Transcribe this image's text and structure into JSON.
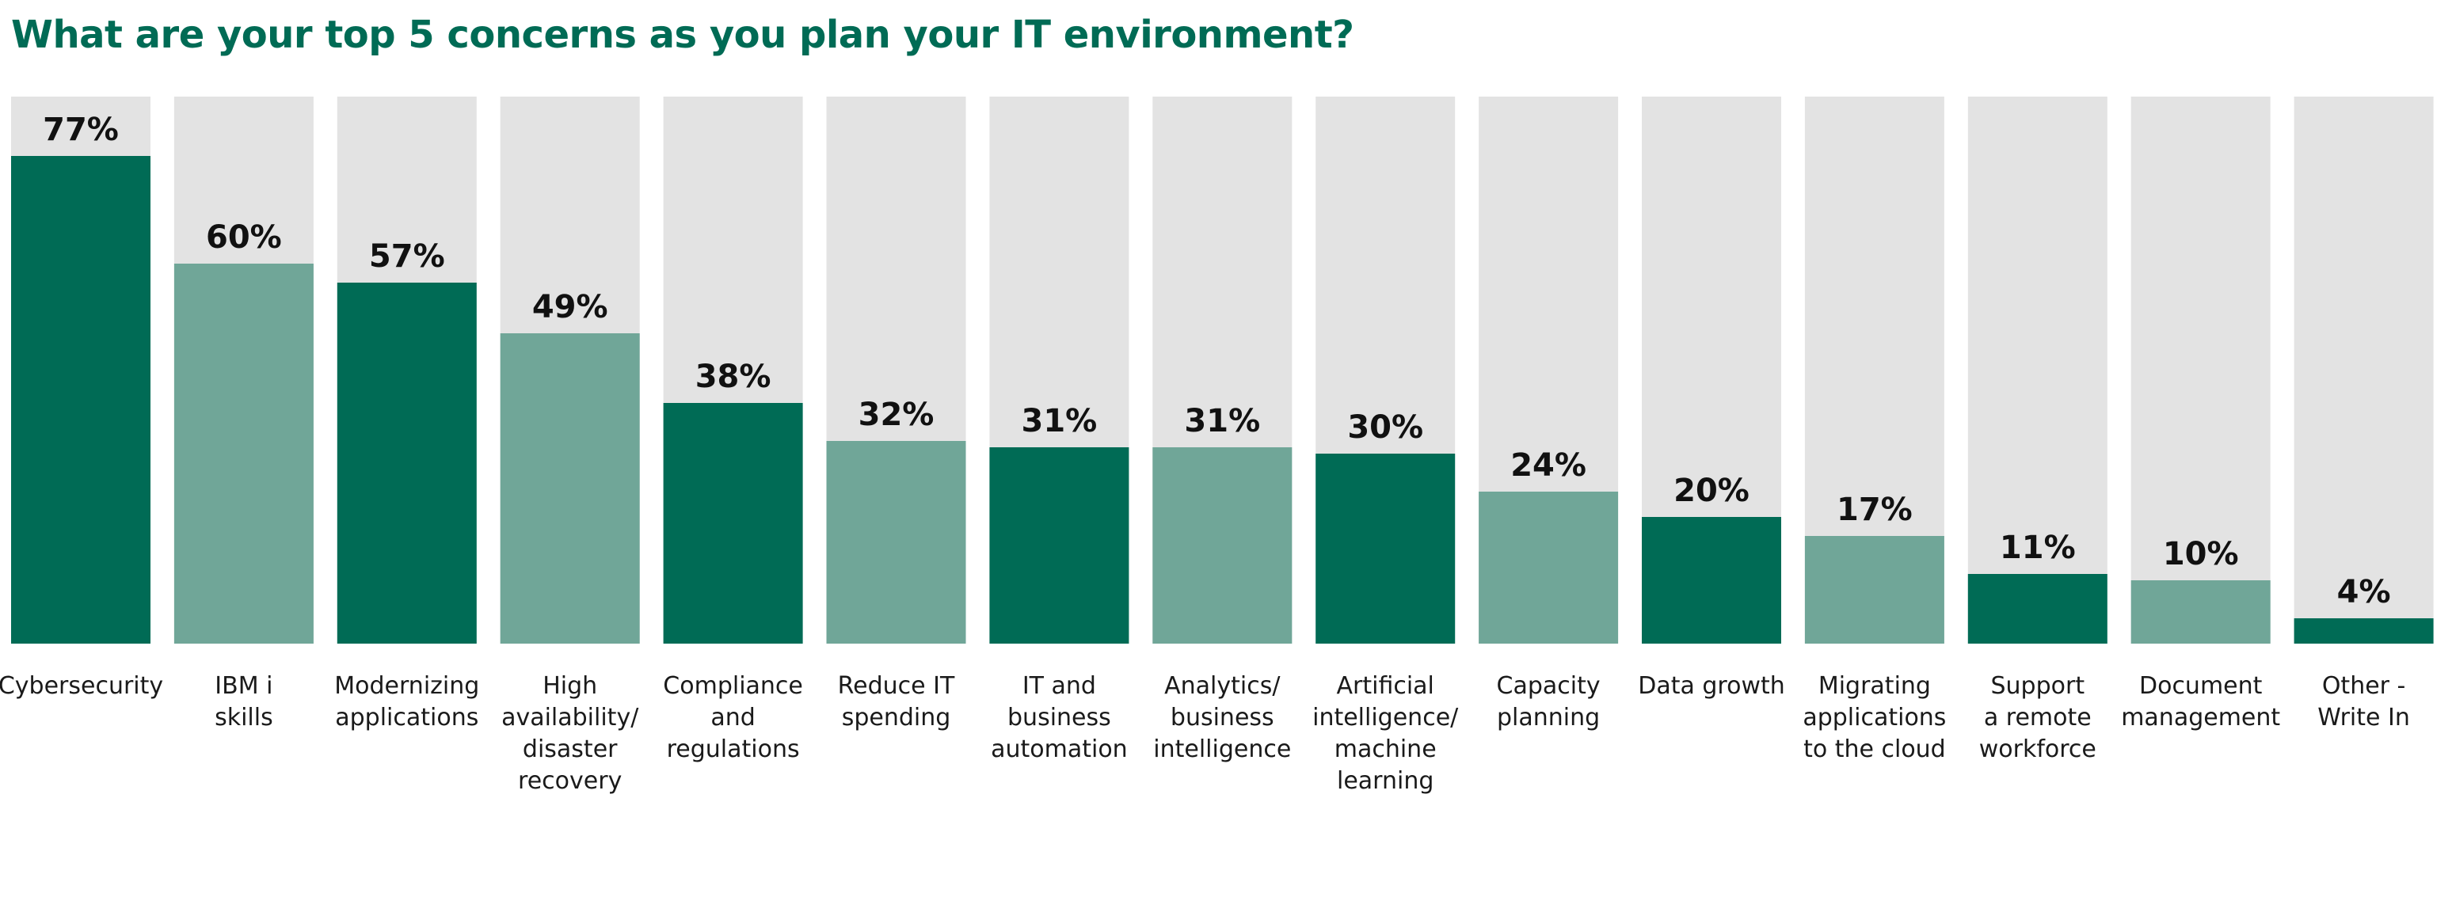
{
  "chart_data": {
    "type": "bar",
    "title": "What are your top 5 concerns as you plan your IT environment?",
    "unit": "%",
    "ylim": [
      0,
      100
    ],
    "grid": false,
    "legend": "none",
    "categories": [
      "Cybersecurity",
      "IBM i skills",
      "Modernizing applications",
      "High availability/ disaster recovery",
      "Compliance and regulations",
      "Reduce IT spending",
      "IT and business automation",
      "Analytics/ business intelligence",
      "Artificial intelligence/ machine learning",
      "Capacity planning",
      "Data growth",
      "Migrating applications to the cloud",
      "Support a remote workforce",
      "Document management",
      "Other - Write In"
    ],
    "category_lines": [
      [
        "Cybersecurity"
      ],
      [
        "IBM i",
        "skills"
      ],
      [
        "Modernizing",
        "applications"
      ],
      [
        "High",
        "availability/",
        "disaster",
        "recovery"
      ],
      [
        "Compliance",
        "and",
        "regulations"
      ],
      [
        "Reduce IT",
        "spending"
      ],
      [
        "IT and",
        "business",
        "automation"
      ],
      [
        "Analytics/",
        "business",
        "intelligence"
      ],
      [
        "Artificial",
        "intelligence/",
        "machine",
        "learning"
      ],
      [
        "Capacity",
        "planning"
      ],
      [
        "Data growth"
      ],
      [
        "Migrating",
        "applications",
        "to the cloud"
      ],
      [
        "Support",
        "a remote",
        "workforce"
      ],
      [
        "Document",
        "management"
      ],
      [
        "Other -",
        "Write In"
      ]
    ],
    "values": [
      77,
      60,
      57,
      49,
      38,
      32,
      31,
      31,
      30,
      24,
      20,
      17,
      11,
      10,
      4
    ],
    "value_labels": [
      "77%",
      "60%",
      "57%",
      "49%",
      "38%",
      "32%",
      "31%",
      "31%",
      "30%",
      "24%",
      "20%",
      "17%",
      "11%",
      "10%",
      "4%"
    ],
    "colors": {
      "dark": "#006b55",
      "light": "#70a698",
      "track": "#e3e3e3",
      "title": "#006b55"
    }
  }
}
